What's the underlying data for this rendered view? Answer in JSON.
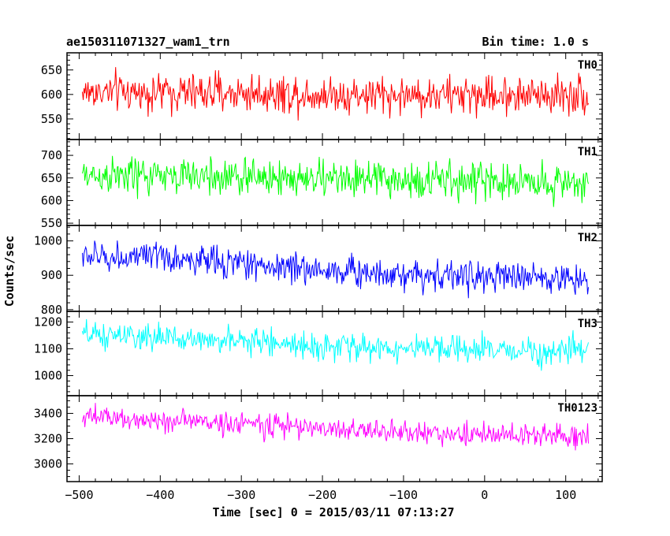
{
  "header": {
    "title_left": "ae150311071327_wam1_trn",
    "title_right": "Bin time: 1.0 s"
  },
  "chart_data": {
    "type": "line",
    "xlabel": "Time [sec] 0 = 2015/03/11 07:13:27",
    "ylabel": "Counts/sec",
    "xlim": [
      -515,
      145
    ],
    "x_ticks": [
      -500,
      -400,
      -300,
      -200,
      -100,
      0,
      100
    ],
    "x_tick_labels": [
      "−500",
      "−400",
      "−300",
      "−200",
      "−100",
      "0",
      "100"
    ],
    "x_range": [
      -496,
      128
    ],
    "bin_time": 1.0,
    "panels": [
      {
        "name": "TH0",
        "color": "#ff0000",
        "ylim": [
          508,
          685
        ],
        "yticks": [
          550,
          600,
          650
        ],
        "trend": [
          [
            -496,
            605
          ],
          [
            -300,
            603
          ],
          [
            -100,
            598
          ],
          [
            128,
            600
          ]
        ],
        "noise": 28
      },
      {
        "name": "TH1",
        "color": "#00ff00",
        "ylim": [
          545,
          735
        ],
        "yticks": [
          550,
          600,
          650,
          700
        ],
        "trend": [
          [
            -496,
            655
          ],
          [
            -300,
            652
          ],
          [
            -100,
            645
          ],
          [
            128,
            640
          ]
        ],
        "noise": 30
      },
      {
        "name": "TH2",
        "color": "#0000ff",
        "ylim": [
          795,
          1045
        ],
        "yticks": [
          800,
          900,
          1000
        ],
        "trend": [
          [
            -496,
            955
          ],
          [
            -400,
            950
          ],
          [
            -300,
            935
          ],
          [
            -200,
            915
          ],
          [
            -100,
            905
          ],
          [
            0,
            895
          ],
          [
            128,
            890
          ]
        ],
        "noise": 32
      },
      {
        "name": "TH3",
        "color": "#00ffff",
        "ylim": [
          925,
          1240
        ],
        "yticks": [
          1000,
          1100,
          1200
        ],
        "trend": [
          [
            -496,
            1150
          ],
          [
            -300,
            1130
          ],
          [
            -200,
            1110
          ],
          [
            -100,
            1100
          ],
          [
            0,
            1095
          ],
          [
            128,
            1090
          ]
        ],
        "noise": 35
      },
      {
        "name": "TH0123",
        "color": "#ff00ff",
        "ylim": [
          2860,
          3540
        ],
        "yticks": [
          3000,
          3200,
          3400
        ],
        "trend": [
          [
            -496,
            3370
          ],
          [
            -300,
            3320
          ],
          [
            -200,
            3280
          ],
          [
            -100,
            3250
          ],
          [
            0,
            3230
          ],
          [
            128,
            3220
          ]
        ],
        "noise": 65
      }
    ]
  }
}
